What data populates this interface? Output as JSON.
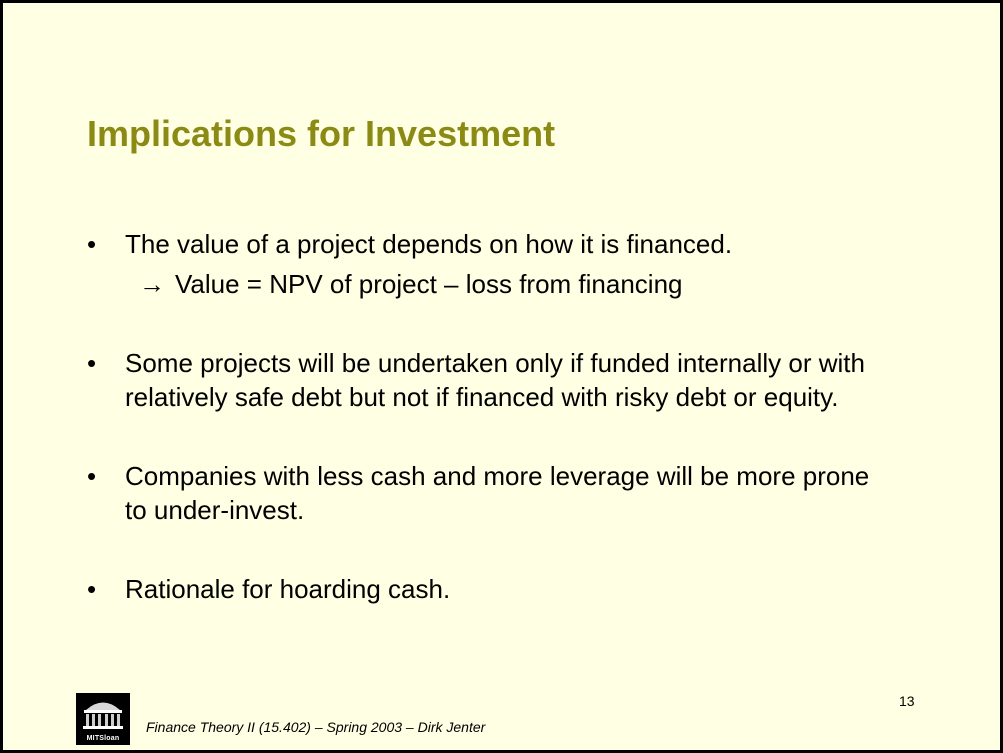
{
  "slide": {
    "title": "Implications for Investment",
    "bullets": [
      {
        "marker": "•",
        "text": "The value of a project depends on how it is financed."
      },
      {
        "marker": "•",
        "text": "Some projects will be undertaken only if funded internally or with relatively safe debt but not if financed with risky debt or equity."
      },
      {
        "marker": "•",
        "text": "Companies with less cash and more leverage will be more prone to under-invest."
      },
      {
        "marker": "•",
        "text": "Rationale for hoarding cash."
      }
    ],
    "sub_bullet": {
      "marker": "→",
      "text": "Value = NPV of project – loss from financing"
    }
  },
  "footer": {
    "logo_text": "MITSloan",
    "course": "Finance Theory II (15.402) – Spring 2003 – Dirk Jenter",
    "page_number": "13"
  },
  "colors": {
    "background": "#ffffe3",
    "title": "#8a8a14",
    "border": "#000000"
  }
}
